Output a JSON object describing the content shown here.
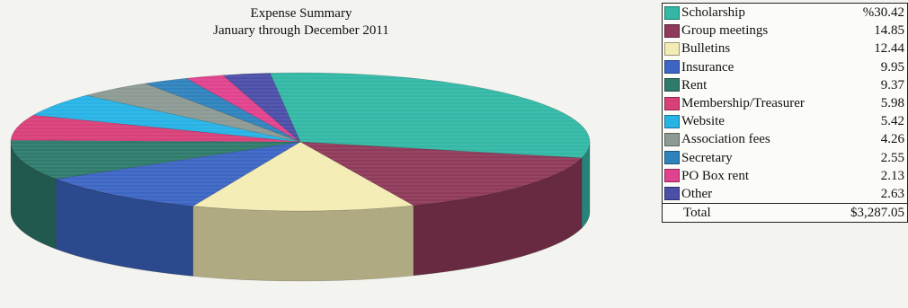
{
  "chart_data": {
    "type": "pie",
    "title": "Expense Summary",
    "subtitle": "January through December 2011",
    "series": [
      {
        "name": "Scholarship",
        "value": 30.42,
        "label": "%30.42",
        "color": "#33b8a6"
      },
      {
        "name": "Group meetings",
        "value": 14.85,
        "label": "14.85",
        "color": "#8f3a5a"
      },
      {
        "name": "Bulletins",
        "value": 12.44,
        "label": "12.44",
        "color": "#f3ecb4"
      },
      {
        "name": "Insurance",
        "value": 9.95,
        "label": "9.95",
        "color": "#3d66c4"
      },
      {
        "name": "Rent",
        "value": 9.37,
        "label": "9.37",
        "color": "#2e7b6c"
      },
      {
        "name": "Membership/Treasurer",
        "value": 5.98,
        "label": "5.98",
        "color": "#d9407a"
      },
      {
        "name": "Website",
        "value": 5.42,
        "label": "5.42",
        "color": "#27b3e6"
      },
      {
        "name": "Association fees",
        "value": 4.26,
        "label": "4.26",
        "color": "#8c9a93"
      },
      {
        "name": "Secretary",
        "value": 2.55,
        "label": "2.55",
        "color": "#2f83bd"
      },
      {
        "name": "PO Box rent",
        "value": 2.13,
        "label": "2.13",
        "color": "#e0428e"
      },
      {
        "name": "Other",
        "value": 2.63,
        "label": "2.63",
        "color": "#4b4fa8"
      }
    ],
    "total_label": "Total",
    "total_value": "$3,287.05",
    "legend_position": "right"
  }
}
